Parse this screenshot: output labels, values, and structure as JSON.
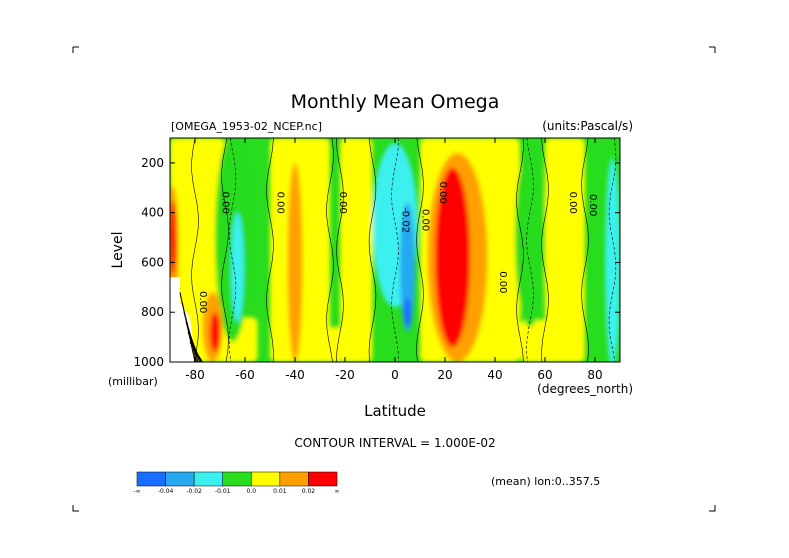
{
  "chart_data": {
    "type": "heatmap",
    "title": "Monthly Mean Omega",
    "dataset_label": "[OMEGA_1953-02_NCEP.nc]",
    "units_label": "(units:Pascal/s)",
    "xlabel": "Latitude",
    "x_units_label": "(degrees_north)",
    "ylabel": "Level",
    "y_units_label": "(millibar)",
    "xlim": [
      -90,
      90
    ],
    "ylim": [
      1000,
      100
    ],
    "x_ticks": [
      -80,
      -60,
      -40,
      -20,
      0,
      20,
      40,
      60,
      80
    ],
    "x_tick_labels": [
      "-80",
      "-60",
      "-40",
      "-20",
      "0",
      "20",
      "40",
      "60",
      "80"
    ],
    "y_ticks": [
      200,
      400,
      600,
      800,
      1000
    ],
    "y_tick_labels": [
      "200",
      "400",
      "600",
      "800",
      "1000"
    ],
    "contour_interval_label": "CONTOUR INTERVAL = 1.000E-02",
    "mean_label": "(mean) lon:0..357.5",
    "contour_labels": [
      {
        "lat": -69,
        "level": 360,
        "text": "0.00"
      },
      {
        "lat": -47,
        "level": 360,
        "text": "0.00"
      },
      {
        "lat": -22,
        "level": 360,
        "text": "0.00"
      },
      {
        "lat": 3,
        "level": 430,
        "text": "-0.02"
      },
      {
        "lat": 11,
        "level": 430,
        "text": "0.00"
      },
      {
        "lat": 18,
        "level": 320,
        "text": "0.00"
      },
      {
        "lat": 42,
        "level": 680,
        "text": "0.00"
      },
      {
        "lat": -78,
        "level": 760,
        "text": "0.00"
      },
      {
        "lat": 70,
        "level": 360,
        "text": "0.00"
      },
      {
        "lat": 78,
        "level": 370,
        "text": "0.00"
      }
    ],
    "colorbar": {
      "colors": [
        "#1a6eff",
        "#28a8f0",
        "#3cf0f0",
        "#28dc1e",
        "#ffff00",
        "#ffa000",
        "#ff0000"
      ],
      "labels": [
        "-∞",
        "-0.04",
        "-0.02",
        "-0.01",
        "0.0",
        "0.01",
        "0.02",
        "∞"
      ]
    },
    "grid": false
  }
}
